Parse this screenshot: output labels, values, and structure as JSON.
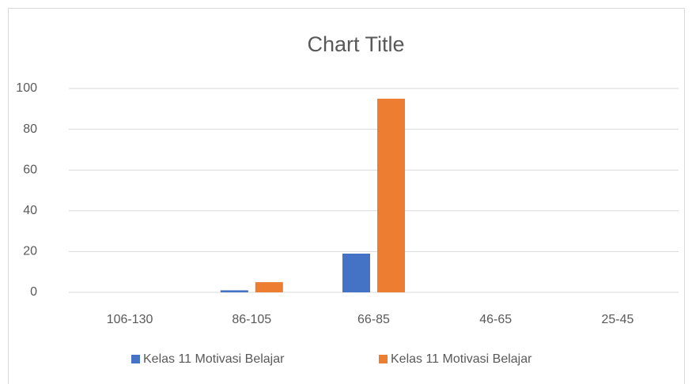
{
  "chart_data": {
    "type": "bar",
    "title": "Chart Title",
    "categories": [
      "106-130",
      "86-105",
      "66-85",
      "46-65",
      "25-45"
    ],
    "series": [
      {
        "name": "Kelas 11 Motivasi Belajar",
        "color": "#4472c4",
        "values": [
          0,
          1,
          19,
          0,
          0
        ]
      },
      {
        "name": "Kelas 11 Motivasi Belajar",
        "color": "#ed7d31",
        "values": [
          0,
          5,
          95,
          0,
          0
        ]
      }
    ],
    "ylim": [
      0,
      100
    ],
    "yticks": [
      0,
      20,
      40,
      60,
      80,
      100
    ],
    "grid": true,
    "legend": "bottom"
  }
}
